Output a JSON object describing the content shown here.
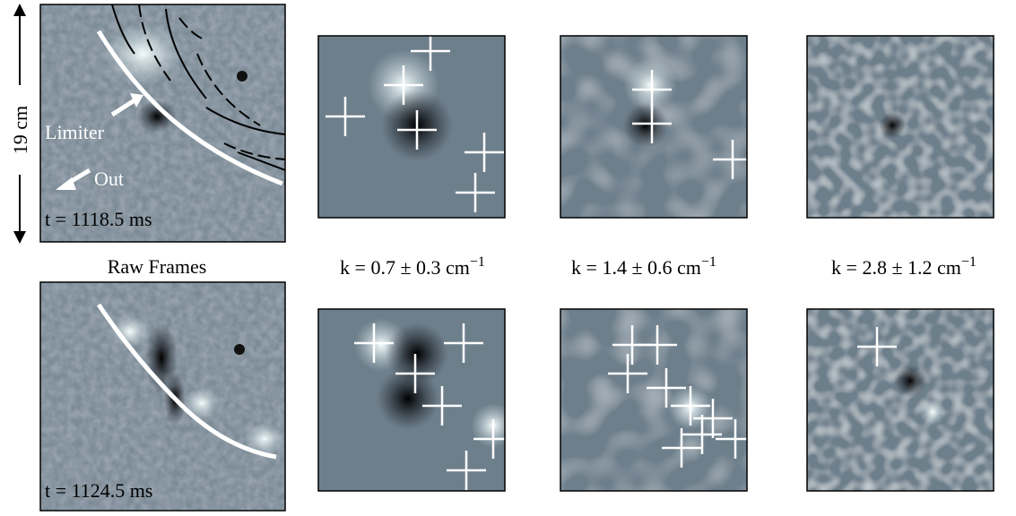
{
  "figure": {
    "scale_label": "19 cm",
    "raw_frames_label": "Raw Frames",
    "frame_top": {
      "time": "t = 1118.5 ms",
      "limiter_label": "Limiter",
      "out_label": "Out"
    },
    "frame_bottom": {
      "time": "t = 1124.5 ms"
    },
    "filters": [
      {
        "text": "k = 0.7 ± 0.3 cm",
        "sup": "−1"
      },
      {
        "text": "k = 1.4 ± 0.6 cm",
        "sup": "−1"
      },
      {
        "text": "k = 2.8 ± 1.2 cm",
        "sup": "−1"
      }
    ]
  }
}
